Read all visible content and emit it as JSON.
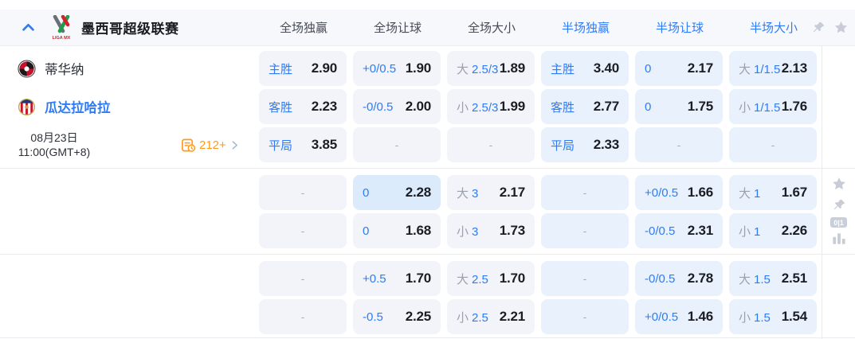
{
  "colors": {
    "accent_blue": "#2e7cf5",
    "label_gray": "#9aa0ac",
    "odds_black": "#1a1d23",
    "full_cell_bg": "#f2f4f9",
    "half_cell_bg": "#e9f1fc",
    "highlight_cell_bg": "#dcebfc",
    "header_bg": "#f6f8fb",
    "divider": "#e9edf2",
    "icon_gray": "#c7ccd7",
    "markets_orange": "#ff9a1e"
  },
  "icons": {
    "collapse": "chevron-up",
    "header_pin": "pushpin",
    "header_favorite": "star",
    "markets": "odds-list-clock",
    "markets_next": "chevron-right",
    "side_favorite": "star",
    "side_pin": "pushpin",
    "side_score_badge": "0|1",
    "side_stats": "bar-chart"
  },
  "header": {
    "league_name": "墨西哥超级联赛",
    "columns": [
      {
        "label": "全场独赢",
        "tone": "full"
      },
      {
        "label": "全场让球",
        "tone": "full"
      },
      {
        "label": "全场大小",
        "tone": "full"
      },
      {
        "label": "半场独赢",
        "tone": "half"
      },
      {
        "label": "半场让球",
        "tone": "half"
      },
      {
        "label": "半场大小",
        "tone": "half"
      }
    ]
  },
  "match": {
    "home_team": "蒂华纳",
    "away_team": "瓜达拉哈拉",
    "date": "08月23日",
    "time": "11:00(GMT+8)",
    "markets_count": "212+"
  },
  "odds": {
    "dash_char": "-",
    "row_tops": [
      64,
      112,
      160,
      220,
      268,
      328,
      376
    ],
    "rows": [
      [
        {
          "parts": [
            [
              "主胜",
              "b"
            ]
          ],
          "odds": "2.90"
        },
        {
          "parts": [
            [
              "+0/0.5",
              "b"
            ]
          ],
          "odds": "1.90"
        },
        {
          "parts": [
            [
              "大",
              "g"
            ],
            [
              "2.5/3",
              "b"
            ]
          ],
          "odds": "1.89"
        },
        {
          "parts": [
            [
              "主胜",
              "b"
            ]
          ],
          "odds": "3.40"
        },
        {
          "parts": [
            [
              "0",
              "b"
            ]
          ],
          "odds": "2.17"
        },
        {
          "parts": [
            [
              "大",
              "g"
            ],
            [
              "1/1.5",
              "b"
            ]
          ],
          "odds": "2.13"
        }
      ],
      [
        {
          "parts": [
            [
              "客胜",
              "b"
            ]
          ],
          "odds": "2.23"
        },
        {
          "parts": [
            [
              "-0/0.5",
              "b"
            ]
          ],
          "odds": "2.00"
        },
        {
          "parts": [
            [
              "小",
              "g"
            ],
            [
              "2.5/3",
              "b"
            ]
          ],
          "odds": "1.99"
        },
        {
          "parts": [
            [
              "客胜",
              "b"
            ]
          ],
          "odds": "2.77"
        },
        {
          "parts": [
            [
              "0",
              "b"
            ]
          ],
          "odds": "1.75"
        },
        {
          "parts": [
            [
              "小",
              "g"
            ],
            [
              "1/1.5",
              "b"
            ]
          ],
          "odds": "1.76"
        }
      ],
      [
        {
          "parts": [
            [
              "平局",
              "b"
            ]
          ],
          "odds": "3.85"
        },
        {
          "dash": true
        },
        {
          "dash": true
        },
        {
          "parts": [
            [
              "平局",
              "b"
            ]
          ],
          "odds": "2.33"
        },
        {
          "dash": true
        },
        {
          "dash": true
        }
      ],
      [
        {
          "dash": true
        },
        {
          "parts": [
            [
              "0",
              "b"
            ]
          ],
          "odds": "2.28",
          "highlight": true
        },
        {
          "parts": [
            [
              "大",
              "g"
            ],
            [
              "3",
              "b"
            ]
          ],
          "odds": "2.17"
        },
        {
          "dash": true
        },
        {
          "parts": [
            [
              "+0/0.5",
              "b"
            ]
          ],
          "odds": "1.66"
        },
        {
          "parts": [
            [
              "大",
              "g"
            ],
            [
              "1",
              "b"
            ]
          ],
          "odds": "1.67"
        }
      ],
      [
        {
          "dash": true
        },
        {
          "parts": [
            [
              "0",
              "b"
            ]
          ],
          "odds": "1.68"
        },
        {
          "parts": [
            [
              "小",
              "g"
            ],
            [
              "3",
              "b"
            ]
          ],
          "odds": "1.73"
        },
        {
          "dash": true
        },
        {
          "parts": [
            [
              "-0/0.5",
              "b"
            ]
          ],
          "odds": "2.31"
        },
        {
          "parts": [
            [
              "小",
              "g"
            ],
            [
              "1",
              "b"
            ]
          ],
          "odds": "2.26"
        }
      ],
      [
        {
          "dash": true
        },
        {
          "parts": [
            [
              "+0.5",
              "b"
            ]
          ],
          "odds": "1.70"
        },
        {
          "parts": [
            [
              "大",
              "g"
            ],
            [
              "2.5",
              "b"
            ]
          ],
          "odds": "1.70"
        },
        {
          "dash": true
        },
        {
          "parts": [
            [
              "-0/0.5",
              "b"
            ]
          ],
          "odds": "2.78"
        },
        {
          "parts": [
            [
              "大",
              "g"
            ],
            [
              "1.5",
              "b"
            ]
          ],
          "odds": "2.51"
        }
      ],
      [
        {
          "dash": true
        },
        {
          "parts": [
            [
              "-0.5",
              "b"
            ]
          ],
          "odds": "2.25"
        },
        {
          "parts": [
            [
              "小",
              "g"
            ],
            [
              "2.5",
              "b"
            ]
          ],
          "odds": "2.21"
        },
        {
          "dash": true
        },
        {
          "parts": [
            [
              "+0/0.5",
              "b"
            ]
          ],
          "odds": "1.46"
        },
        {
          "parts": [
            [
              "小",
              "g"
            ],
            [
              "1.5",
              "b"
            ]
          ],
          "odds": "1.54"
        }
      ]
    ]
  }
}
